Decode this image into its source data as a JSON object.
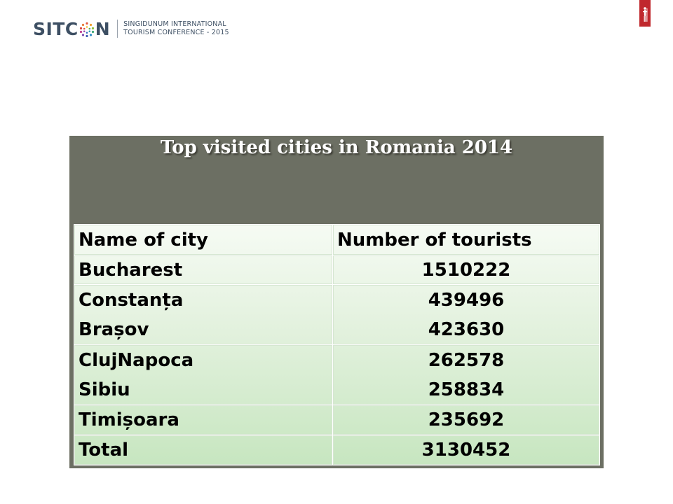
{
  "header": {
    "logo_word_left": "SITC",
    "logo_word_right": "N",
    "logo_line1": "SINGIDUNUM INTERNATIONAL",
    "logo_line2": "TOURISM CONFERENCE - 2015"
  },
  "panel": {
    "title": "Top visited cities in Romania 2014"
  },
  "table": {
    "headers": [
      "Name of city",
      "Number of tourists"
    ],
    "rows": [
      {
        "city": "Bucharest",
        "tourists": "1510222"
      },
      {
        "city": "Constanța",
        "tourists": "439496"
      },
      {
        "city": "Brașov",
        "tourists": "423630"
      },
      {
        "city": "ClujNapoca",
        "tourists": "262578"
      },
      {
        "city": "Sibiu",
        "tourists": "258834"
      },
      {
        "city": "Timișoara",
        "tourists": "235692"
      },
      {
        "city": "Total",
        "tourists": "3130452"
      }
    ]
  },
  "colors": {
    "panel_bg": "#6c6f63",
    "title_text": "#ffffff",
    "table_top": "#f6fbf4",
    "table_bottom": "#c7e6c0",
    "logo_text": "#3d4f63",
    "corner_mark": "#c0282d"
  }
}
